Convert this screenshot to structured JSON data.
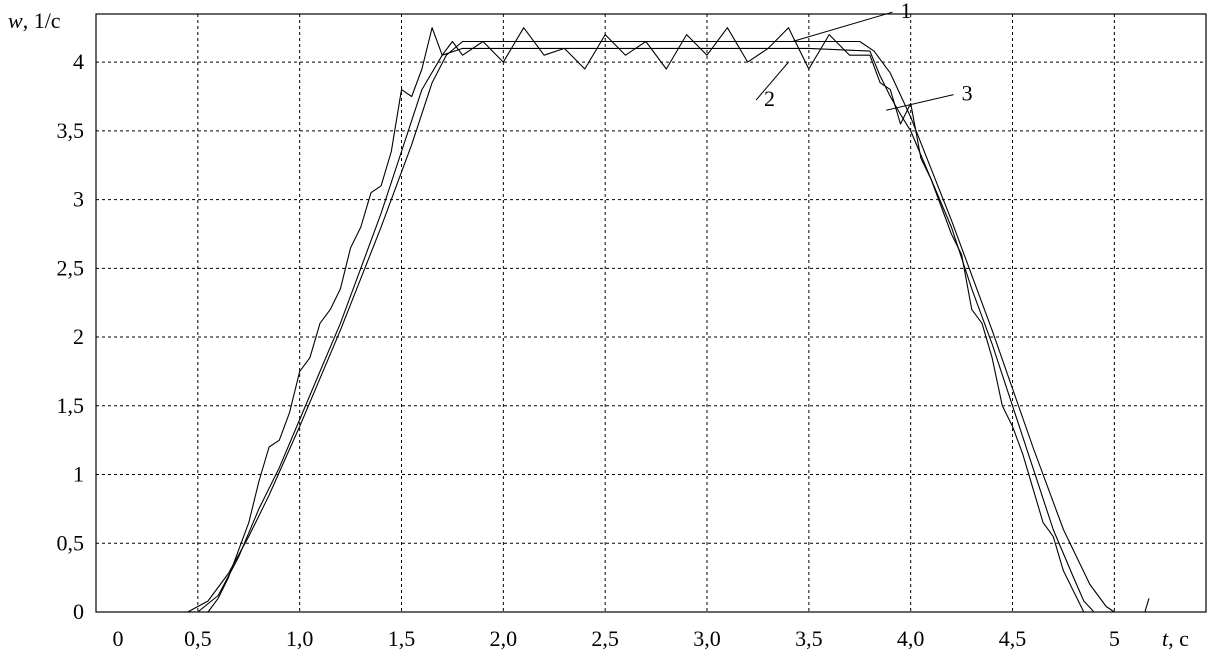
{
  "chart_data": {
    "type": "line",
    "title": "",
    "ylabel_var": "w",
    "ylabel_unit": ", 1/c",
    "xlabel_var": "t",
    "xlabel_unit": ", c",
    "xlim": [
      0,
      5.45
    ],
    "ylim": [
      0,
      4.35
    ],
    "grid": true,
    "x_ticks": [
      {
        "value": 0,
        "label": "0"
      },
      {
        "value": 0.5,
        "label": "0,5"
      },
      {
        "value": 1.0,
        "label": "1,0"
      },
      {
        "value": 1.5,
        "label": "1,5"
      },
      {
        "value": 2.0,
        "label": "2,0"
      },
      {
        "value": 2.5,
        "label": "2,5"
      },
      {
        "value": 3.0,
        "label": "3,0"
      },
      {
        "value": 3.5,
        "label": "3,5"
      },
      {
        "value": 4.0,
        "label": "4,0"
      },
      {
        "value": 4.5,
        "label": "4,5"
      },
      {
        "value": 5.0,
        "label": "5"
      }
    ],
    "y_ticks": [
      {
        "value": 0,
        "label": "0"
      },
      {
        "value": 0.5,
        "label": "0,5"
      },
      {
        "value": 1,
        "label": "1"
      },
      {
        "value": 1.5,
        "label": "1,5"
      },
      {
        "value": 2,
        "label": "2"
      },
      {
        "value": 2.5,
        "label": "2,5"
      },
      {
        "value": 3,
        "label": "3"
      },
      {
        "value": 3.5,
        "label": "3,5"
      },
      {
        "value": 4,
        "label": "4"
      }
    ],
    "series": [
      {
        "name": "1",
        "x": [
          0.45,
          0.55,
          0.65,
          0.75,
          0.85,
          1.0,
          1.2,
          1.4,
          1.55,
          1.65,
          1.72,
          1.8,
          3.6,
          3.75,
          3.82,
          3.9,
          4.0,
          4.2,
          4.4,
          4.6,
          4.75,
          4.88,
          4.96,
          5.0
        ],
        "y": [
          0.0,
          0.08,
          0.28,
          0.55,
          0.85,
          1.35,
          2.05,
          2.8,
          3.4,
          3.85,
          4.05,
          4.15,
          4.15,
          4.15,
          4.08,
          3.92,
          3.6,
          2.85,
          2.05,
          1.2,
          0.6,
          0.2,
          0.04,
          0.0
        ]
      },
      {
        "name": "2",
        "x": [
          0.55,
          0.6,
          0.65,
          0.7,
          0.75,
          0.8,
          0.85,
          0.9,
          0.95,
          1.0,
          1.05,
          1.1,
          1.15,
          1.2,
          1.25,
          1.3,
          1.35,
          1.4,
          1.45,
          1.5,
          1.55,
          1.6,
          1.65,
          1.7,
          1.75,
          1.8,
          1.9,
          2.0,
          2.1,
          2.2,
          2.3,
          2.4,
          2.5,
          2.6,
          2.7,
          2.8,
          2.9,
          3.0,
          3.1,
          3.2,
          3.3,
          3.4,
          3.5,
          3.6,
          3.7,
          3.8,
          3.85,
          3.9,
          3.95,
          4.0,
          4.05,
          4.1,
          4.15,
          4.2,
          4.25,
          4.3,
          4.35,
          4.4,
          4.45,
          4.5,
          4.55,
          4.6,
          4.65,
          4.7,
          4.75,
          4.8,
          4.85
        ],
        "y": [
          0.0,
          0.1,
          0.25,
          0.45,
          0.65,
          0.95,
          1.2,
          1.25,
          1.45,
          1.75,
          1.85,
          2.1,
          2.2,
          2.35,
          2.65,
          2.8,
          3.05,
          3.1,
          3.35,
          3.8,
          3.75,
          3.95,
          4.25,
          4.05,
          4.15,
          4.05,
          4.15,
          4.0,
          4.25,
          4.05,
          4.1,
          3.95,
          4.2,
          4.05,
          4.15,
          3.95,
          4.2,
          4.05,
          4.25,
          4.0,
          4.1,
          4.25,
          3.95,
          4.2,
          4.05,
          4.05,
          3.85,
          3.8,
          3.55,
          3.7,
          3.3,
          3.15,
          2.95,
          2.75,
          2.6,
          2.2,
          2.1,
          1.85,
          1.5,
          1.35,
          1.15,
          0.9,
          0.65,
          0.55,
          0.3,
          0.15,
          0.0
        ]
      },
      {
        "name": "3",
        "x": [
          0.5,
          0.6,
          0.7,
          0.8,
          0.9,
          1.0,
          1.1,
          1.2,
          1.3,
          1.4,
          1.5,
          1.6,
          1.7,
          1.8,
          2.0,
          2.5,
          3.0,
          3.5,
          3.8,
          3.85,
          3.9,
          3.95,
          4.0,
          4.1,
          4.2,
          4.3,
          4.4,
          4.5,
          4.6,
          4.7,
          4.8,
          4.85,
          4.9,
          5.15,
          5.17
        ],
        "y": [
          0.0,
          0.12,
          0.4,
          0.75,
          1.05,
          1.4,
          1.75,
          2.1,
          2.5,
          2.9,
          3.35,
          3.8,
          4.05,
          4.1,
          4.1,
          4.1,
          4.1,
          4.1,
          4.08,
          3.9,
          3.75,
          3.62,
          3.5,
          3.15,
          2.8,
          2.35,
          1.95,
          1.5,
          1.05,
          0.6,
          0.25,
          0.08,
          0.0,
          0.0,
          0.1
        ]
      }
    ],
    "annotations": [
      {
        "text": "1",
        "x": 3.95,
        "y": 4.32,
        "target": [
          3.42,
          4.15
        ]
      },
      {
        "text": "2",
        "x": 3.28,
        "y": 3.68,
        "target": [
          3.4,
          4.0
        ]
      },
      {
        "text": "3",
        "x": 4.25,
        "y": 3.72,
        "target": [
          3.88,
          3.65
        ]
      }
    ]
  }
}
